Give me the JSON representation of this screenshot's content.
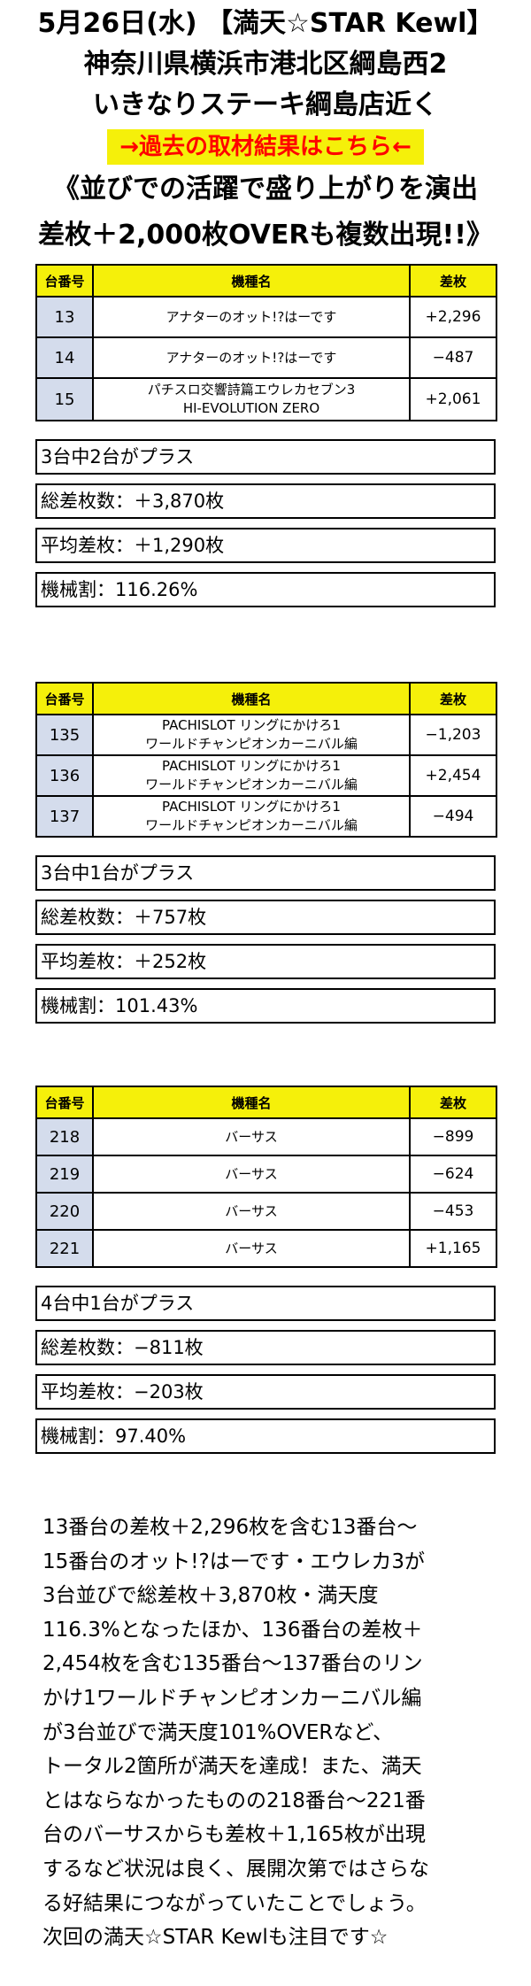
{
  "header": {
    "line1": "5月26日(水) 【満天☆STAR Kewl】",
    "line2": "神奈川県横浜市港北区綱島西2",
    "line3": "いきなりステーキ綱島店近く",
    "link_label": "→過去の取材結果はこちら←",
    "catch1": "《並びでの活躍で盛り上がりを演出",
    "catch2": "差枚＋2,000枚OVERも複数出現!!》"
  },
  "colors": {
    "header_fill": "#f5f00a",
    "number_fill": "#d4dcec",
    "link_text": "#ff0000"
  },
  "table_headers": {
    "number": "台番号",
    "model": "機種名",
    "diff": "差枚"
  },
  "groups": [
    {
      "rows": [
        {
          "num": "13",
          "name": [
            "アナターのオット!?はーです"
          ],
          "diff": "+2,296"
        },
        {
          "num": "14",
          "name": [
            "アナターのオット!?はーです"
          ],
          "diff": "−487"
        },
        {
          "num": "15",
          "name": [
            "パチスロ交響詩篇エウレカセブン3",
            "HI-EVOLUTION ZERO"
          ],
          "diff": "+2,061"
        }
      ],
      "summary": {
        "plus_count": "3台中2台がプラス",
        "total": "総差枚数：＋3,870枚",
        "average": "平均差枚：＋1,290枚",
        "payout": "機械割：116.26%"
      }
    },
    {
      "rows": [
        {
          "num": "135",
          "name": [
            "PACHISLOT リングにかけろ1",
            "ワールドチャンピオンカーニバル編"
          ],
          "diff": "−1,203"
        },
        {
          "num": "136",
          "name": [
            "PACHISLOT リングにかけろ1",
            "ワールドチャンピオンカーニバル編"
          ],
          "diff": "+2,454"
        },
        {
          "num": "137",
          "name": [
            "PACHISLOT リングにかけろ1",
            "ワールドチャンピオンカーニバル編"
          ],
          "diff": "−494"
        }
      ],
      "summary": {
        "plus_count": "3台中1台がプラス",
        "total": "総差枚数：＋757枚",
        "average": "平均差枚：＋252枚",
        "payout": "機械割：101.43%"
      }
    },
    {
      "rows": [
        {
          "num": "218",
          "name": [
            "バーサス"
          ],
          "diff": "−899"
        },
        {
          "num": "219",
          "name": [
            "バーサス"
          ],
          "diff": "−624"
        },
        {
          "num": "220",
          "name": [
            "バーサス"
          ],
          "diff": "−453"
        },
        {
          "num": "221",
          "name": [
            "バーサス"
          ],
          "diff": "+1,165"
        }
      ],
      "summary": {
        "plus_count": "4台中1台がプラス",
        "total": "総差枚数：−811枚",
        "average": "平均差枚：−203枚",
        "payout": "機械割：97.40%"
      }
    }
  ],
  "paragraph": [
    "13番台の差枚＋2,296枚を含む13番台〜",
    "15番台のオット!?はーです・エウレカ3が",
    "3台並びで総差枚＋3,870枚・満天度",
    "116.3%となったほか、136番台の差枚＋",
    "2,454枚を含む135番台〜137番台のリン",
    "かけ1ワールドチャンピオンカーニバル編",
    "が3台並びで満天度101%OVERなど、",
    "トータル2箇所が満天を達成！また、満天",
    "とはならなかったものの218番台〜221番",
    "台のバーサスからも差枚＋1,165枚が出現",
    "するなど状況は良く、展開次第ではさらな",
    "る好結果につながっていたことでしょう。",
    "次回の満天☆STAR Kewlも注目です☆"
  ]
}
